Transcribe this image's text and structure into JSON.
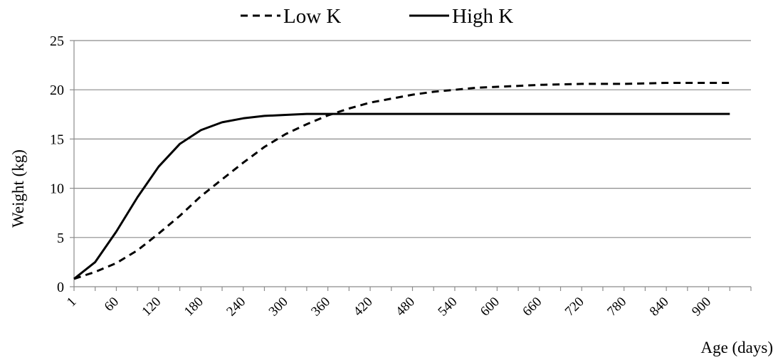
{
  "chart_data": {
    "type": "line",
    "xlabel": "Age (days)",
    "ylabel": "Weight (kg)",
    "ylim": [
      0,
      25
    ],
    "y_ticks": [
      0,
      5,
      10,
      15,
      20,
      25
    ],
    "x_tick_labels": [
      "1",
      "60",
      "120",
      "180",
      "240",
      "300",
      "360",
      "420",
      "480",
      "540",
      "600",
      "660",
      "720",
      "780",
      "840",
      "900"
    ],
    "grid": "horizontal",
    "legend_position": "top",
    "x": [
      1,
      30,
      60,
      90,
      120,
      150,
      180,
      210,
      240,
      270,
      300,
      330,
      360,
      390,
      420,
      450,
      480,
      510,
      540,
      570,
      600,
      630,
      660,
      690,
      720,
      750,
      780,
      810,
      840,
      870,
      900,
      930
    ],
    "series": [
      {
        "name": "Low K",
        "style": "dashed",
        "color": "#000000",
        "values": [
          0.8,
          1.5,
          2.4,
          3.7,
          5.4,
          7.2,
          9.2,
          10.9,
          12.6,
          14.2,
          15.5,
          16.5,
          17.4,
          18.1,
          18.7,
          19.1,
          19.5,
          19.8,
          20.0,
          20.2,
          20.3,
          20.4,
          20.5,
          20.55,
          20.6,
          20.6,
          20.6,
          20.65,
          20.7,
          20.7,
          20.7,
          20.7
        ]
      },
      {
        "name": "High K",
        "style": "solid",
        "color": "#000000",
        "values": [
          0.8,
          2.5,
          5.6,
          9.1,
          12.2,
          14.5,
          15.9,
          16.7,
          17.1,
          17.35,
          17.45,
          17.55,
          17.55,
          17.55,
          17.55,
          17.55,
          17.55,
          17.55,
          17.55,
          17.55,
          17.55,
          17.55,
          17.55,
          17.55,
          17.55,
          17.55,
          17.55,
          17.55,
          17.55,
          17.55,
          17.55,
          17.55
        ]
      }
    ]
  }
}
